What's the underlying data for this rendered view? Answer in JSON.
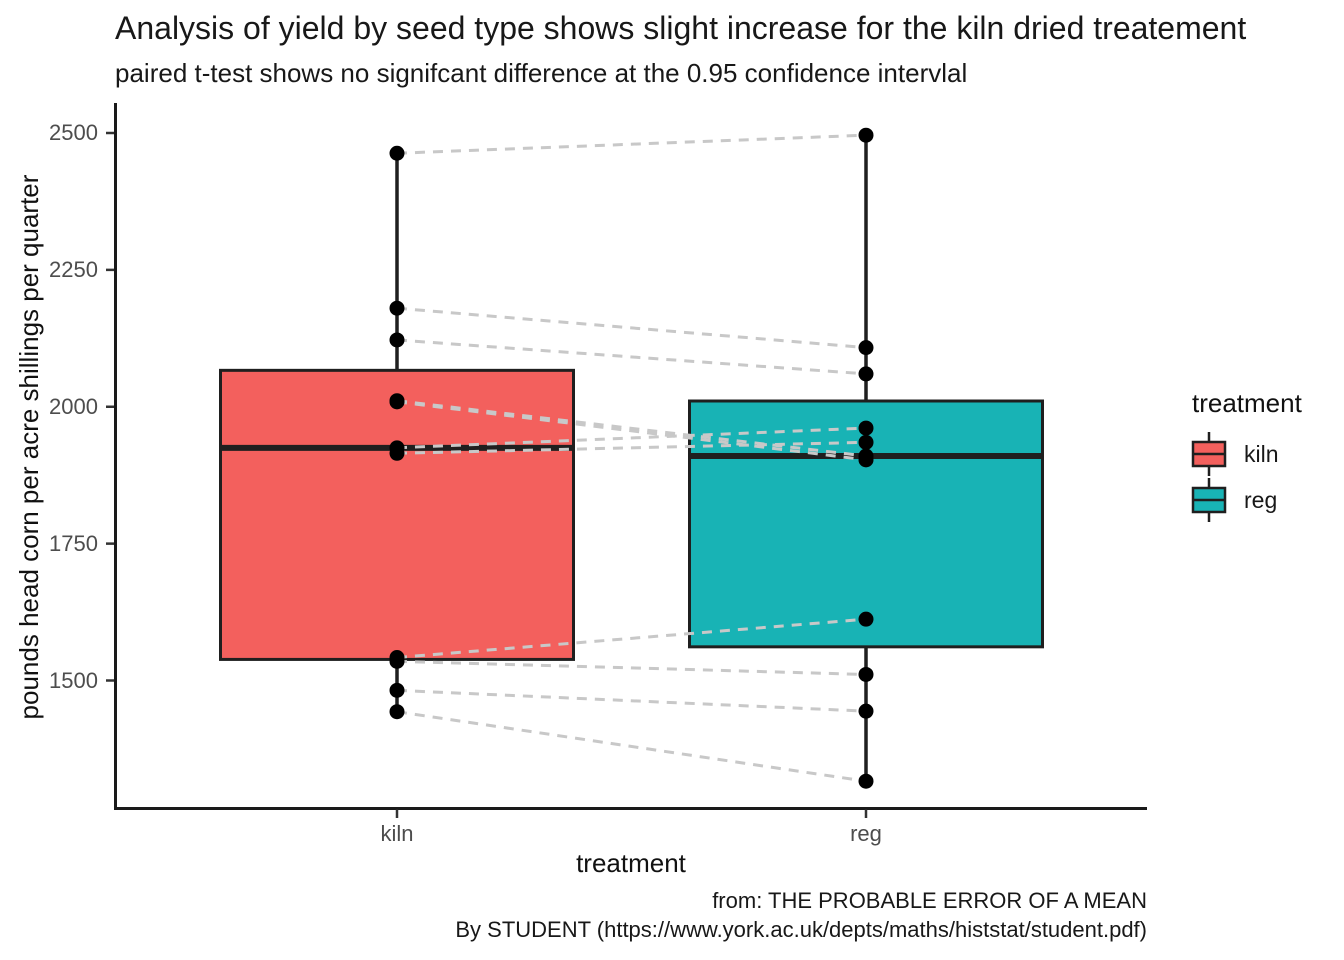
{
  "chart_data": {
    "type": "boxplot",
    "variant": "paired boxplots with overlaid points; paired observations joined by dashed lines",
    "title": "Analysis of yield by seed type shows slight increase for the kiln dried treatement",
    "subtitle": "paired t-test shows no signifcant difference at the 0.95 confidence intervlal",
    "caption": [
      "from: THE PROBABLE ERROR OF A MEAN",
      "By STUDENT (https://www.york.ac.uk/depts/maths/histstat/student.pdf)"
    ],
    "xlabel": "treatment",
    "ylabel": "pounds head corn per acre shillings per quarter",
    "categories": [
      "kiln",
      "reg"
    ],
    "yticks": [
      2500,
      2250,
      2000,
      1750,
      1500
    ],
    "ylim": [
      1260,
      2550
    ],
    "grid": false,
    "legend": {
      "title": "treatment",
      "position": "right",
      "entries": [
        {
          "label": "kiln",
          "fill": "#F3605D"
        },
        {
          "label": "reg",
          "fill": "#18B3B5"
        }
      ]
    },
    "series": [
      {
        "name": "kiln",
        "fill": "#F3605D",
        "values": [
          2009,
          1915,
          2011,
          2463,
          2180,
          1925,
          2122,
          1482,
          1542,
          1443,
          1535
        ],
        "box": {
          "min": 1443,
          "q1": 1538.5,
          "median": 1925,
          "q3": 2066.5,
          "max": 2463
        }
      },
      {
        "name": "reg",
        "fill": "#18B3B5",
        "values": [
          1903,
          1935,
          1910,
          2496,
          2108,
          1961,
          2060,
          1444,
          1612,
          1316,
          1511
        ],
        "box": {
          "min": 1316,
          "q1": 1561.5,
          "median": 1910,
          "q3": 2010.5,
          "max": 2496
        }
      }
    ],
    "pairing": "values at the same index are paired and connected by a dashed line",
    "colors": {
      "point": "#000000",
      "pair_line": "#C8C8C8",
      "box_border": "#1F1F1F",
      "median_line": "#1F1F1F",
      "axis_line": "#1A1A1A",
      "tick_mark": "#333333",
      "tick_label": "#4D4D4D"
    }
  }
}
